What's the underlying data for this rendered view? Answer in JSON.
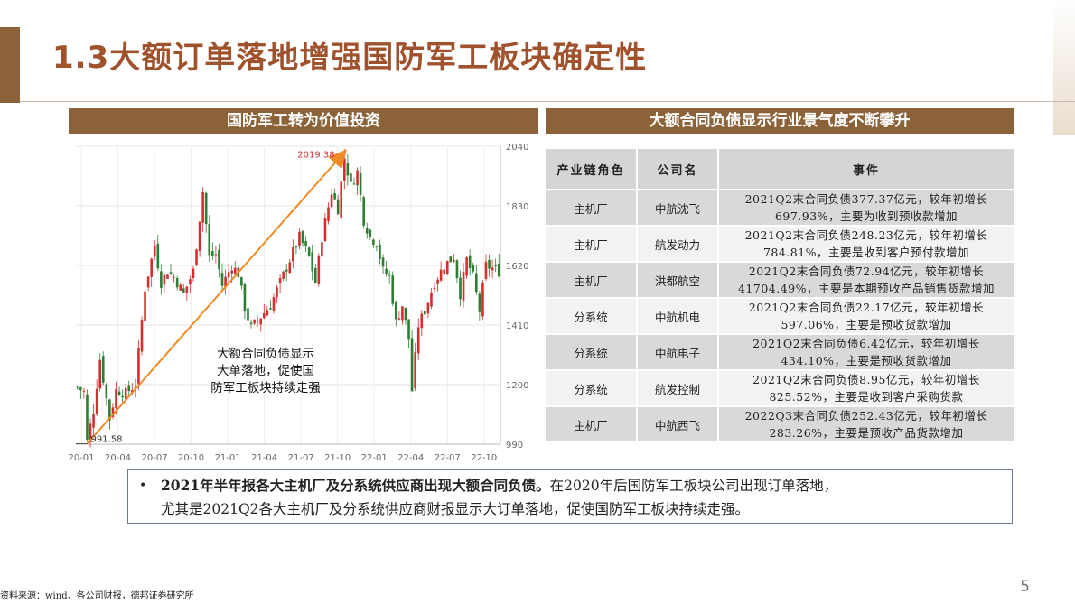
{
  "slide": {
    "title": "1.3大额订单落地增强国防军工板块确定性",
    "left_header": "国防军工转为价值投资",
    "right_header": "大额合同负债显示行业景气度不断攀升",
    "page_number": "5",
    "source": "资料来源：wind、各公司财报，德邦证券研究所",
    "colors": {
      "brand": "#8c6239",
      "title": "#a0522d",
      "candle_up": "#d32f2f",
      "candle_down": "#2e7d32",
      "trend_arrow": "#f08a24"
    }
  },
  "chart_data": {
    "type": "candlestick",
    "title": "",
    "xlabel": "",
    "ylabel": "",
    "x_ticks": [
      "20-01",
      "20-04",
      "20-07",
      "20-10",
      "21-01",
      "21-04",
      "21-07",
      "21-10",
      "22-01",
      "22-04",
      "22-07",
      "22-10"
    ],
    "y_ticks": [
      990,
      1200,
      1410,
      1620,
      1830,
      2040
    ],
    "ylim": [
      990,
      2040
    ],
    "y_axis_position": "right",
    "grid": true,
    "annotations": {
      "min_label": "991.58",
      "max_label": "2019.38",
      "trend_note": "大额合同负债显示大单落地，促使国防军工板块持续走强"
    },
    "trend_arrow": {
      "from": [
        "20-01",
        991.58
      ],
      "to": [
        "21-10",
        2019.38
      ]
    },
    "price_path": [
      [
        0,
        1190
      ],
      [
        2,
        1175
      ],
      [
        3,
        1000
      ],
      [
        5,
        1110
      ],
      [
        7,
        1290
      ],
      [
        10,
        1080
      ],
      [
        12,
        1180
      ],
      [
        15,
        1170
      ],
      [
        18,
        1200
      ],
      [
        21,
        1540
      ],
      [
        24,
        1690
      ],
      [
        26,
        1560
      ],
      [
        28,
        1600
      ],
      [
        30,
        1580
      ],
      [
        33,
        1520
      ],
      [
        36,
        1600
      ],
      [
        39,
        1880
      ],
      [
        41,
        1650
      ],
      [
        43,
        1660
      ],
      [
        45,
        1550
      ],
      [
        48,
        1620
      ],
      [
        50,
        1590
      ],
      [
        52,
        1470
      ],
      [
        54,
        1400
      ],
      [
        57,
        1440
      ],
      [
        60,
        1480
      ],
      [
        63,
        1560
      ],
      [
        66,
        1640
      ],
      [
        69,
        1720
      ],
      [
        72,
        1650
      ],
      [
        74,
        1560
      ],
      [
        76,
        1720
      ],
      [
        79,
        1880
      ],
      [
        81,
        1820
      ],
      [
        83,
        2000
      ],
      [
        85,
        1900
      ],
      [
        87,
        1950
      ],
      [
        89,
        1780
      ],
      [
        91,
        1720
      ],
      [
        93,
        1700
      ],
      [
        95,
        1600
      ],
      [
        97,
        1580
      ],
      [
        99,
        1420
      ],
      [
        101,
        1480
      ],
      [
        103,
        1360
      ],
      [
        104,
        1180
      ],
      [
        106,
        1410
      ],
      [
        108,
        1460
      ],
      [
        111,
        1560
      ],
      [
        114,
        1620
      ],
      [
        117,
        1650
      ],
      [
        119,
        1520
      ],
      [
        121,
        1640
      ],
      [
        123,
        1580
      ],
      [
        125,
        1460
      ],
      [
        127,
        1620
      ],
      [
        131,
        1600
      ]
    ]
  },
  "table": {
    "headers": [
      "产业链角色",
      "公司名",
      "事件"
    ],
    "rows": [
      {
        "role": "主机厂",
        "company": "中航沈飞",
        "event_line1": "2021Q2末合同负债377.37亿元，较年初增长",
        "event_line2": "697.93%，主要为收到预收款增加"
      },
      {
        "role": "主机厂",
        "company": "航发动力",
        "event_line1": "2021Q2末合同负债248.23亿元，较年初增长",
        "event_line2": "784.81%，主要是收到客户预付款增加"
      },
      {
        "role": "主机厂",
        "company": "洪都航空",
        "event_line1": "2021Q2末合同负债72.94亿元，较年初增长",
        "event_line2": "41704.49%，主要是本期预收产品销售货款增加"
      },
      {
        "role": "分系统",
        "company": "中航机电",
        "event_line1": "2021Q2末合同负债22.17亿元，较年初增长",
        "event_line2": "597.06%，主要是预收货款增加"
      },
      {
        "role": "分系统",
        "company": "中航电子",
        "event_line1": "2021Q2末合同负债6.42亿元，较年初增长",
        "event_line2": "434.10%，主要是预收货款增加"
      },
      {
        "role": "分系统",
        "company": "航发控制",
        "event_line1": "2021Q2末合同负债8.95亿元，较年初增长",
        "event_line2": "825.52%，主要是收到客户采购货款"
      },
      {
        "role": "主机厂",
        "company": "中航西飞",
        "event_line1": "2022Q3末合同负债252.43亿元，较年初增长",
        "event_line2": "283.26%，主要是预收产品货款增加"
      }
    ]
  },
  "summary": {
    "bullet": "•",
    "bold_text": "2021年半年报各大主机厂及分系统供应商出现大额合同负债。",
    "normal_text_line1": "在2020年后国防军工板块公司出现订单落地，",
    "normal_text_line2": "尤其是2021Q2各大主机厂及分系统供应商财报显示大订单落地，促使国防军工板块持续走强。"
  }
}
